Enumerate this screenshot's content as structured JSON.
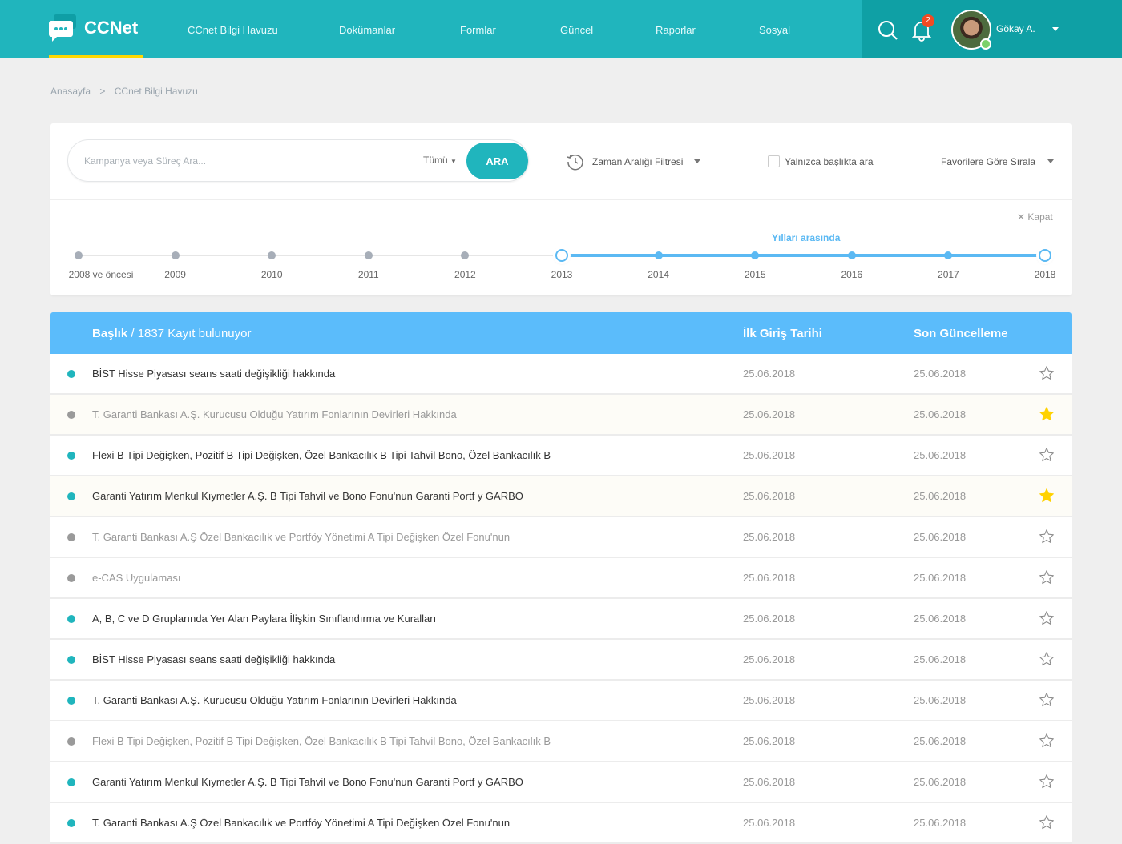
{
  "header": {
    "logo": "CCNet",
    "nav": [
      "CCnet Bilgi Havuzu",
      "Dokümanlar",
      "Formlar",
      "Güncel",
      "Raporlar",
      "Sosyal"
    ],
    "notification_count": "2",
    "user_name": "Gökay A.",
    "colors": {
      "bar": "#20b5bd",
      "bar_right": "#0fa0a5",
      "active_underline": "#ffd800"
    }
  },
  "breadcrumb": {
    "home": "Anasayfa",
    "separator": ">",
    "current": "CCnet Bilgi Havuzu"
  },
  "filters": {
    "search_placeholder": "Kampanya veya Süreç Ara...",
    "search_value": "",
    "scope": "Tümü",
    "search_button": "ARA",
    "time_filter": "Zaman Aralığı Filtresi",
    "title_only_label": "Yalnızca başlıkta ara",
    "title_only_checked": false,
    "sort": "Favorilere Göre Sırala"
  },
  "timeline": {
    "close": "Kapat",
    "range_label": "Yılları arasında",
    "years": [
      "2008 ve öncesi",
      "2009",
      "2010",
      "2011",
      "2012",
      "2013",
      "2014",
      "2015",
      "2016",
      "2017",
      "2018"
    ],
    "range_start": "2013",
    "range_end": "2018"
  },
  "table": {
    "col_title": "Başlık",
    "count_text": "/ 1837 Kayıt bulunuyor",
    "col_first": "İlk Giriş Tarihi",
    "col_last": "Son Güncelleme",
    "rows": [
      {
        "title": "BİST Hisse Piyasası seans saati değişikliği hakkında",
        "first": "25.06.2018",
        "last": "25.06.2018",
        "active": true,
        "favorite": false
      },
      {
        "title": "T. Garanti Bankası A.Ş.  Kurucusu Olduğu Yatırım Fonlarının Devirleri Hakkında",
        "first": "25.06.2018",
        "last": "25.06.2018",
        "active": false,
        "favorite": true
      },
      {
        "title": "Flexi B Tipi Değişken, Pozitif B Tipi Değişken, Özel Bankacılık B Tipi Tahvil Bono, Özel Bankacılık B",
        "first": "25.06.2018",
        "last": "25.06.2018",
        "active": true,
        "favorite": false
      },
      {
        "title": "Garanti Yatırım Menkul Kıymetler A.Ş. B Tipi Tahvil ve Bono Fonu'nun Garanti Portf y GARBO",
        "first": "25.06.2018",
        "last": "25.06.2018",
        "active": true,
        "favorite": true
      },
      {
        "title": "T. Garanti Bankası A.Ş Özel Bankacılık ve Portföy Yönetimi A Tipi Değişken Özel Fonu'nun",
        "first": "25.06.2018",
        "last": "25.06.2018",
        "active": false,
        "favorite": false
      },
      {
        "title": "e-CAS Uygulaması",
        "first": "25.06.2018",
        "last": "25.06.2018",
        "active": false,
        "favorite": false
      },
      {
        "title": "A, B, C ve D Gruplarında Yer Alan Paylara İlişkin Sınıflandırma ve Kuralları",
        "first": "25.06.2018",
        "last": "25.06.2018",
        "active": true,
        "favorite": false
      },
      {
        "title": "BİST Hisse Piyasası seans saati değişikliği hakkında",
        "first": "25.06.2018",
        "last": "25.06.2018",
        "active": true,
        "favorite": false
      },
      {
        "title": "T. Garanti Bankası A.Ş.  Kurucusu Olduğu Yatırım Fonlarının Devirleri Hakkında",
        "first": "25.06.2018",
        "last": "25.06.2018",
        "active": true,
        "favorite": false
      },
      {
        "title": "Flexi B Tipi Değişken, Pozitif B Tipi Değişken, Özel Bankacılık B Tipi Tahvil Bono, Özel Bankacılık B",
        "first": "25.06.2018",
        "last": "25.06.2018",
        "active": false,
        "favorite": false
      },
      {
        "title": "Garanti Yatırım Menkul Kıymetler A.Ş. B Tipi Tahvil ve Bono Fonu'nun Garanti Portf y GARBO",
        "first": "25.06.2018",
        "last": "25.06.2018",
        "active": true,
        "favorite": false
      },
      {
        "title": "T. Garanti Bankası A.Ş Özel Bankacılık ve Portföy Yönetimi A Tipi Değişken Özel Fonu'nun",
        "first": "25.06.2018",
        "last": "25.06.2018",
        "active": true,
        "favorite": false
      }
    ],
    "colors": {
      "header": "#5bbcfb",
      "active_dot": "#20b5bd",
      "inactive_dot": "#9a9a9a",
      "favorite_star": "#ffd200"
    }
  }
}
